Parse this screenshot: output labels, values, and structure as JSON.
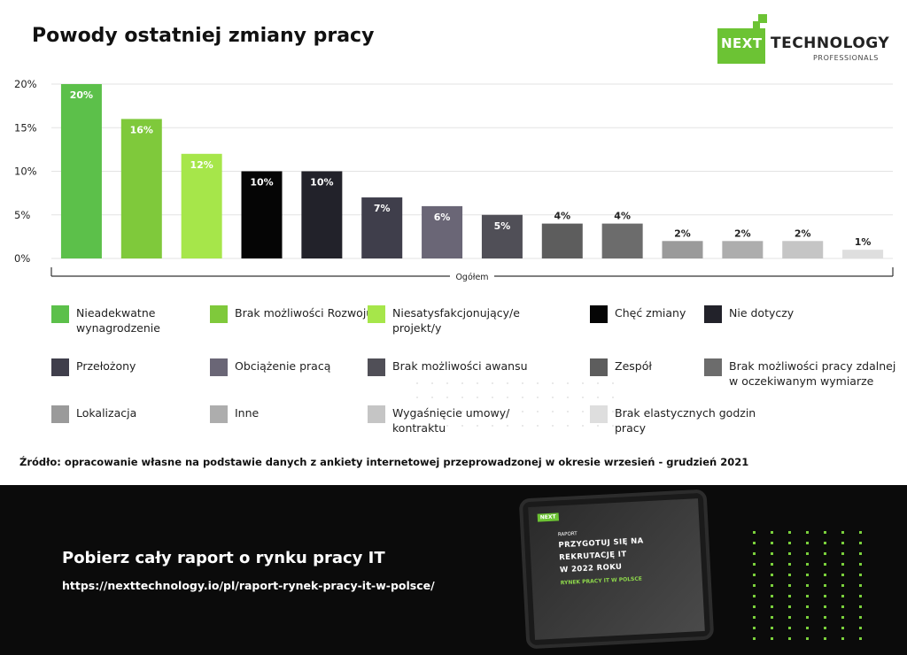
{
  "title": "Powody ostatniej zmiany pracy",
  "logo": {
    "next": "NEXT",
    "technology": "TECHNOLOGY",
    "professionals": "PROFESSIONALS"
  },
  "chart_data": {
    "type": "bar",
    "title": "Powody ostatniej zmiany pracy",
    "xlabel": "Ogółem",
    "ylabel": "",
    "ylim": [
      0,
      20
    ],
    "yticks": [
      "0%",
      "5%",
      "10%",
      "15%",
      "20%"
    ],
    "grid": true,
    "legend_position": "bottom",
    "categories": [
      "Nieadekwatne wynagrodzenie",
      "Brak możliwości Rozwoju",
      "Niesatysfakcjonujący/e projekt/y",
      "Chęć zmiany",
      "Nie dotyczy",
      "Przełożony",
      "Obciążenie pracą",
      "Brak możliwości awansu",
      "Zespół",
      "Brak możliwości pracy zdalnej w oczekiwanym wymiarze",
      "Lokalizacja",
      "Inne",
      "Wygaśnięcie umowy/ kontraktu",
      "Brak elastycznych godzin pracy"
    ],
    "values": [
      20,
      16,
      12,
      10,
      10,
      7,
      6,
      5,
      4,
      4,
      2,
      2,
      2,
      1
    ],
    "value_labels": [
      "20%",
      "16%",
      "12%",
      "10%",
      "10%",
      "7%",
      "6%",
      "5%",
      "4%",
      "4%",
      "2%",
      "2%",
      "2%",
      "1%"
    ],
    "colors": [
      "#5cc04a",
      "#7fc93b",
      "#a6e64a",
      "#050505",
      "#22222a",
      "#3f3e4b",
      "#6a6676",
      "#504f57",
      "#5d5d5d",
      "#6c6c6c",
      "#9a9a9a",
      "#adadad",
      "#c5c5c5",
      "#dedede"
    ]
  },
  "legend": [
    {
      "label": "Nieadekwatne wynagrodzenie",
      "color": "#5cc04a"
    },
    {
      "label": "Brak możliwości Rozwoju",
      "color": "#7fc93b"
    },
    {
      "label": "Niesatysfakcjonujący/e projekt/y",
      "color": "#a6e64a"
    },
    {
      "label": "Chęć zmiany",
      "color": "#050505"
    },
    {
      "label": "Nie dotyczy",
      "color": "#22222a"
    },
    {
      "label": "Przełożony",
      "color": "#3f3e4b"
    },
    {
      "label": "Obciążenie pracą",
      "color": "#6a6676"
    },
    {
      "label": "Brak możliwości awansu",
      "color": "#504f57"
    },
    {
      "label": "Zespół",
      "color": "#5d5d5d"
    },
    {
      "label": "Brak możliwości pracy zdalnej w oczekiwanym wymiarze",
      "color": "#6c6c6c"
    },
    {
      "label": "Lokalizacja",
      "color": "#9a9a9a"
    },
    {
      "label": "Inne",
      "color": "#adadad"
    },
    {
      "label": "Wygaśnięcie umowy/ kontraktu",
      "color": "#c5c5c5"
    },
    {
      "label": "Brak elastycznych godzin pracy",
      "color": "#dedede"
    }
  ],
  "source": "Źródło: opracowanie własne na podstawie danych z ankiety internetowej przeprowadzonej w okresie wrzesień - grudzień 2021",
  "footer": {
    "cta": "Pobierz cały raport o rynku pracy IT",
    "url": "https://nexttechnology.io/pl/raport-rynek-pracy-it-w-polsce/",
    "tablet": {
      "label": "RAPORT",
      "line1": "PRZYGOTUJ SIĘ NA",
      "line2": "REKRUTACJĘ IT",
      "line3": "W 2022 ROKU",
      "sub": "RYNEK PRACY IT W POLSCE"
    }
  }
}
